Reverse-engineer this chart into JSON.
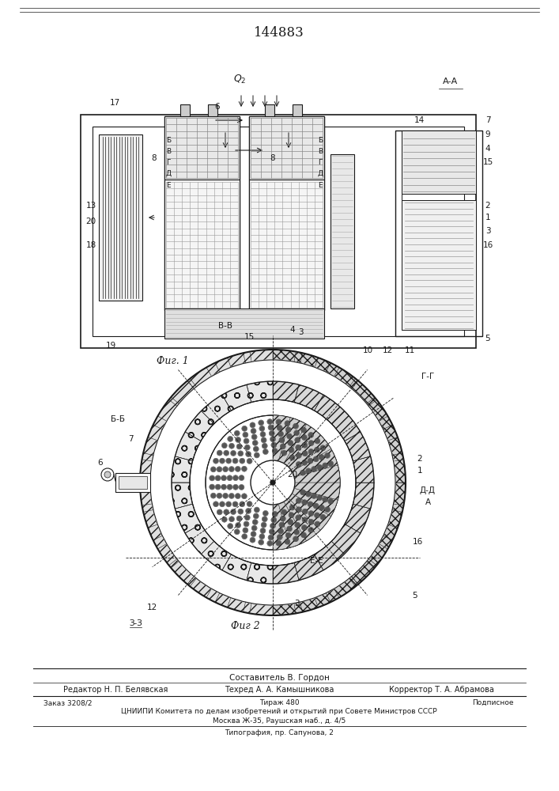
{
  "patent_number": "144883",
  "fig1_caption": "Фиг. 1",
  "fig2_caption": "Фиг 2",
  "footer_composer": "Составитель В. Гордон",
  "footer_editor": "Редактор Н. П. Белявская",
  "footer_tech": "Техред А. А. Камышникова",
  "footer_corrector": "Корректор Т. А. Абрамова",
  "footer_order": "Заказ 3208/2",
  "footer_edition": "Тираж 480",
  "footer_subscription": "Подписное",
  "footer_org": "ЦНИИПИ Комитета по делам изобретений и открытий при Совете Министров СССР",
  "footer_address": "Москва Ж-35, Раушская наб., д. 4/5",
  "footer_print": "Типография, пр. Сапунова, 2",
  "bg_color": "#ffffff",
  "line_color": "#1a1a1a"
}
